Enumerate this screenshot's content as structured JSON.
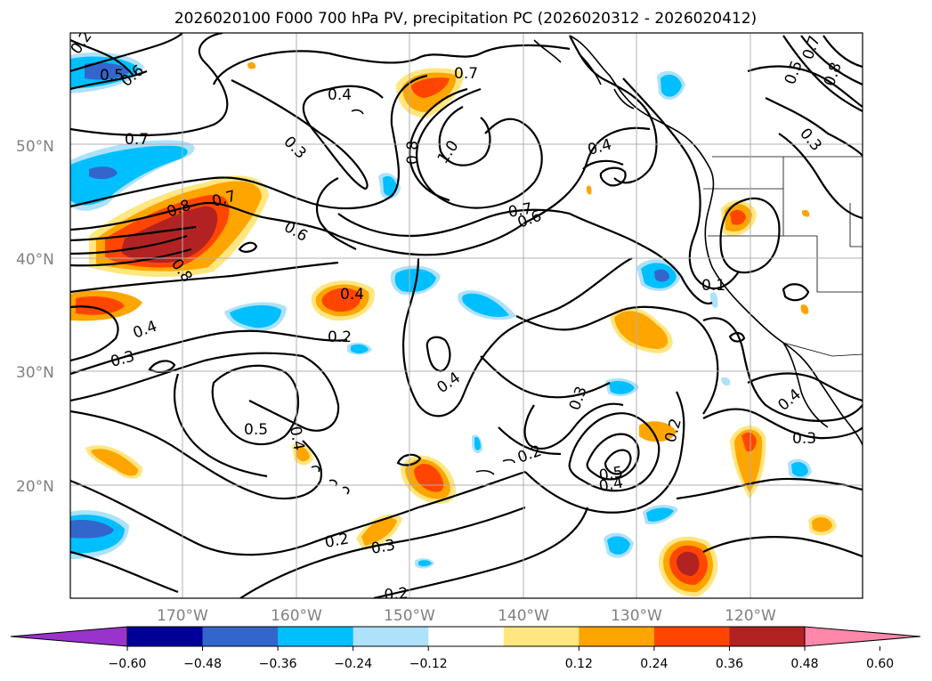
{
  "title": "2026020100 F000 700 hPa PV, precipitation PC (2026020312 - 2026020412)",
  "axes": {
    "lat_labels": [
      "50°N",
      "40°N",
      "30°N",
      "20°N"
    ],
    "lon_labels": [
      "170°W",
      "160°W",
      "150°W",
      "140°W",
      "130°W",
      "120°W"
    ]
  },
  "contour_labels": [
    "0.2",
    "0.5",
    "0.6",
    "0.7",
    "0.4",
    "0.8",
    "1.0",
    "0.7",
    "0.6",
    "0.4",
    "0.7",
    "0.8",
    "0.7",
    "0.6",
    "0.8",
    "0.4",
    "0.4",
    "0.3",
    "0.2",
    "0.4",
    "0.5",
    "0.4",
    "0.3",
    "0.2",
    "0.5",
    "0.4",
    "0.2",
    "0.2",
    "0.3",
    "0.2",
    "0.3",
    "0.7",
    "0.8",
    "0.5",
    "0.3",
    "0.1",
    "0.4",
    "0.3"
  ],
  "colorbar": {
    "ticks": [
      "−0.60",
      "−0.48",
      "−0.36",
      "−0.24",
      "−0.12",
      "0.12",
      "0.24",
      "0.36",
      "0.48",
      "0.60"
    ],
    "colors": {
      "under": "#9933cc",
      "levels": [
        "#000099",
        "#3366cc",
        "#00bfff",
        "#aee1fa",
        "#ffffff",
        "#ffe680",
        "#ffa500",
        "#ff4500",
        "#b22222"
      ],
      "over": "#ff88aa"
    }
  }
}
